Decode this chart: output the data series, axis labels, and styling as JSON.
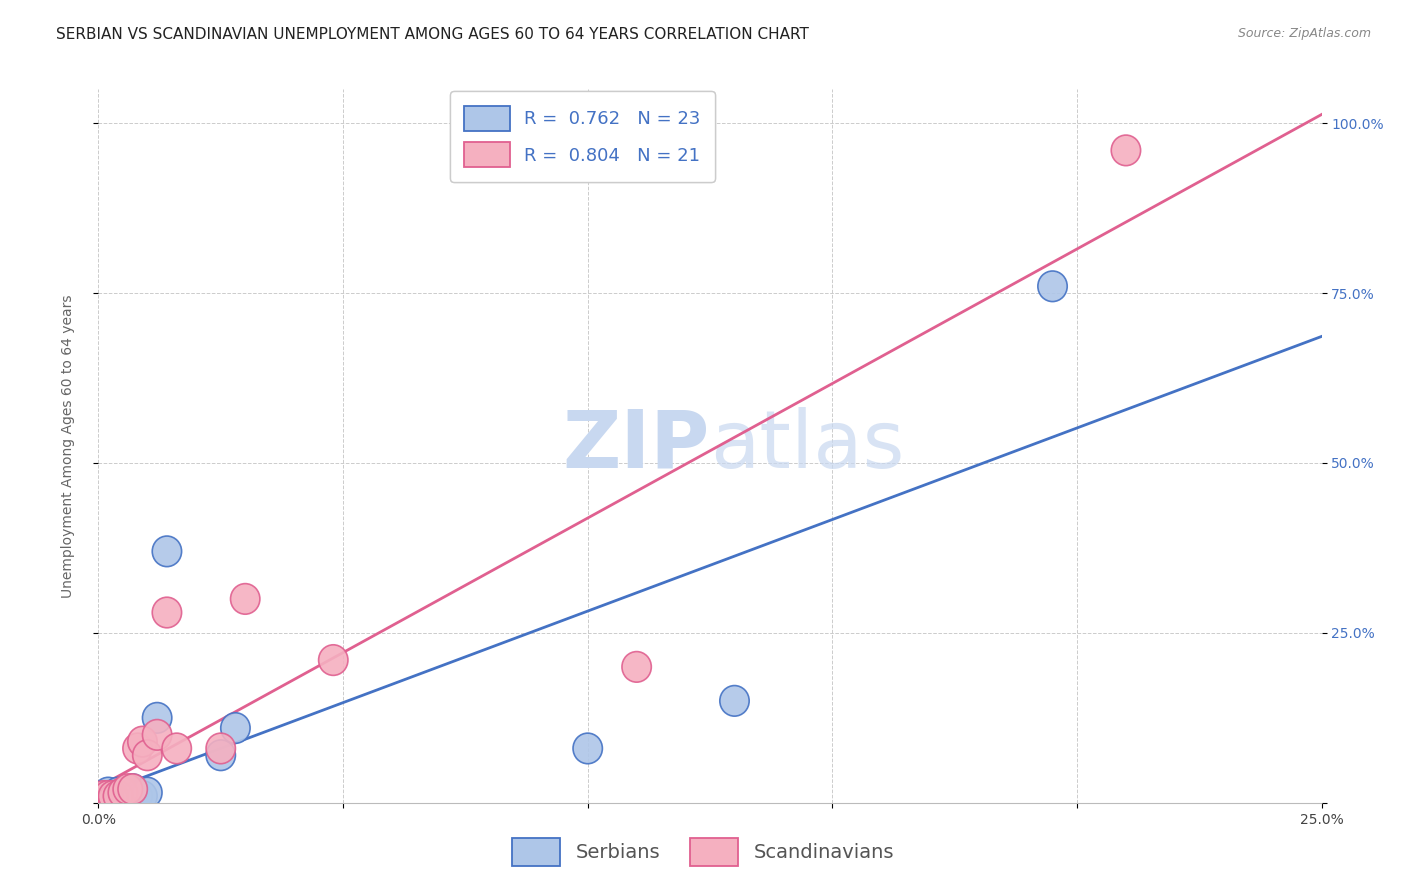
{
  "title": "SERBIAN VS SCANDINAVIAN UNEMPLOYMENT AMONG AGES 60 TO 64 YEARS CORRELATION CHART",
  "source": "Source: ZipAtlas.com",
  "ylabel": "Unemployment Among Ages 60 to 64 years",
  "xlim": [
    0.0,
    0.25
  ],
  "ylim": [
    0.0,
    1.05
  ],
  "serbian_x": [
    0.0,
    0.001,
    0.001,
    0.002,
    0.002,
    0.002,
    0.003,
    0.003,
    0.004,
    0.004,
    0.005,
    0.006,
    0.007,
    0.008,
    0.009,
    0.01,
    0.012,
    0.014,
    0.025,
    0.028,
    0.1,
    0.13,
    0.195
  ],
  "serbian_y": [
    0.005,
    0.005,
    0.01,
    0.005,
    0.01,
    0.015,
    0.005,
    0.01,
    0.01,
    0.015,
    0.005,
    0.015,
    0.02,
    0.01,
    0.01,
    0.015,
    0.125,
    0.37,
    0.07,
    0.11,
    0.08,
    0.15,
    0.76
  ],
  "scandinavian_x": [
    0.0,
    0.001,
    0.001,
    0.002,
    0.003,
    0.003,
    0.004,
    0.005,
    0.006,
    0.007,
    0.008,
    0.009,
    0.01,
    0.012,
    0.014,
    0.016,
    0.025,
    0.03,
    0.048,
    0.11,
    0.21
  ],
  "scandinavian_y": [
    0.005,
    0.005,
    0.01,
    0.01,
    0.005,
    0.01,
    0.01,
    0.015,
    0.02,
    0.02,
    0.08,
    0.09,
    0.07,
    0.1,
    0.28,
    0.08,
    0.08,
    0.3,
    0.21,
    0.2,
    0.96
  ],
  "serbian_face_color": "#aec6e8",
  "scandinavian_face_color": "#f5b0c0",
  "serbian_edge_color": "#4472c4",
  "scandinavian_edge_color": "#e06090",
  "legend_r_serbian": "R =  0.762",
  "legend_n_serbian": "N = 23",
  "legend_r_scandinavian": "R =  0.804",
  "legend_n_scandinavian": "N = 21",
  "watermark_zip": "ZIP",
  "watermark_atlas": "atlas",
  "watermark_color_zip": "#c8d8f0",
  "watermark_color_atlas": "#c8d8f0",
  "grid_color": "#cccccc",
  "title_fontsize": 11,
  "label_fontsize": 10,
  "tick_fontsize": 10,
  "legend_fontsize": 13,
  "ytick_color": "#4472c4",
  "xtick_color": "#444444"
}
